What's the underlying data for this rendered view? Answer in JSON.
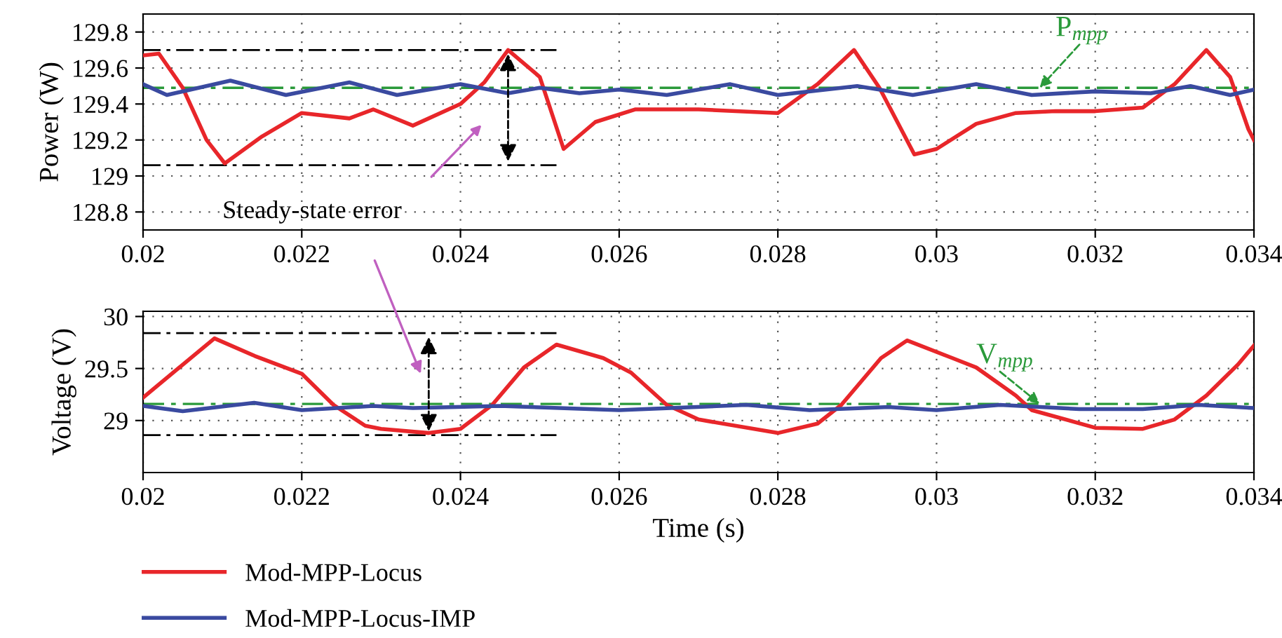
{
  "chart_data": [
    {
      "type": "line",
      "ylabel": "Power (W)",
      "xlim": [
        0.02,
        0.034
      ],
      "xticks": [
        0.02,
        0.022,
        0.024,
        0.026,
        0.028,
        0.03,
        0.032,
        0.034
      ],
      "ylim": [
        128.7,
        129.9
      ],
      "yticks": [
        128.8,
        129,
        129.2,
        129.4,
        129.6,
        129.8
      ],
      "grid": true,
      "legend": false,
      "series": [
        {
          "color": "#e8262a",
          "x": [
            0.02,
            0.0202,
            0.0205,
            0.0208,
            0.02103,
            0.0215,
            0.022,
            0.0226,
            0.0229,
            0.0234,
            0.024,
            0.0243,
            0.0246,
            0.025,
            0.0253,
            0.0257,
            0.0262,
            0.027,
            0.028,
            0.0285,
            0.02896,
            0.02928,
            0.02972,
            0.03,
            0.0305,
            0.031,
            0.0315,
            0.032,
            0.0326,
            0.033,
            0.0334,
            0.0337,
            0.03393,
            0.034
          ],
          "values": [
            129.67,
            129.68,
            129.49,
            129.2,
            129.07,
            129.22,
            129.35,
            129.32,
            129.37,
            129.28,
            129.4,
            129.52,
            129.7,
            129.55,
            129.15,
            129.3,
            129.37,
            129.37,
            129.35,
            129.51,
            129.7,
            129.49,
            129.12,
            129.15,
            129.29,
            129.35,
            129.36,
            129.36,
            129.38,
            129.51,
            129.7,
            129.55,
            129.26,
            129.2
          ]
        },
        {
          "color": "#3a4aa0",
          "x": [
            0.02,
            0.0203,
            0.0211,
            0.0218,
            0.0226,
            0.0232,
            0.024,
            0.0246,
            0.025,
            0.0255,
            0.026,
            0.0266,
            0.0274,
            0.028,
            0.029,
            0.0297,
            0.0305,
            0.0312,
            0.032,
            0.0327,
            0.0332,
            0.0337,
            0.034
          ],
          "values": [
            129.51,
            129.45,
            129.53,
            129.45,
            129.52,
            129.45,
            129.51,
            129.46,
            129.49,
            129.46,
            129.48,
            129.45,
            129.51,
            129.45,
            129.5,
            129.45,
            129.51,
            129.45,
            129.47,
            129.46,
            129.5,
            129.45,
            129.48
          ]
        },
        {
          "color": "#000000",
          "line_style": "dashed",
          "x": [
            0.02,
            0.02521
          ],
          "values": [
            129.7,
            129.7
          ]
        },
        {
          "color": "#000000",
          "line_style": "dashed",
          "x": [
            0.02,
            0.02521
          ],
          "values": [
            129.06,
            129.06
          ]
        }
      ],
      "ref_lines": [
        {
          "axis": "y",
          "value": 129.49,
          "label": "P$_{mpp}$",
          "color": "#2a9a3a",
          "line_style": "dashed"
        }
      ],
      "annotations": [
        "Steady-state error"
      ]
    },
    {
      "type": "line",
      "xlabel": "Time (s)",
      "ylabel": "Voltage (V)",
      "xlim": [
        0.02,
        0.034
      ],
      "xticks": [
        0.02,
        0.022,
        0.024,
        0.026,
        0.028,
        0.03,
        0.032,
        0.034
      ],
      "ylim": [
        28.5,
        30.05
      ],
      "yticks": [
        29,
        29.5,
        30
      ],
      "grid": true,
      "legend": "bottom left",
      "series": [
        {
          "name": "Mod-MPP-Locus",
          "color": "#e8262a",
          "x": [
            0.02,
            0.0209,
            0.02141,
            0.022,
            0.0224,
            0.0228,
            0.023,
            0.0236,
            0.024,
            0.0244,
            0.0248,
            0.02521,
            0.0258,
            0.02615,
            0.0266,
            0.027,
            0.028,
            0.0285,
            0.0288,
            0.0293,
            0.02963,
            0.0302,
            0.0305,
            0.031,
            0.0312,
            0.032,
            0.0326,
            0.033,
            0.0334,
            0.0338,
            0.034
          ],
          "values": [
            29.22,
            29.79,
            29.62,
            29.45,
            29.15,
            28.95,
            28.92,
            28.88,
            28.92,
            29.15,
            29.51,
            29.73,
            29.6,
            29.46,
            29.15,
            29.01,
            28.88,
            28.97,
            29.15,
            29.6,
            29.77,
            29.6,
            29.51,
            29.24,
            29.1,
            28.93,
            28.92,
            29.01,
            29.24,
            29.54,
            29.72
          ]
        },
        {
          "name": "Mod-MPP-Locus-IMP",
          "color": "#3a4aa0",
          "x": [
            0.02,
            0.0205,
            0.0214,
            0.022,
            0.0229,
            0.0234,
            0.0245,
            0.026,
            0.0276,
            0.0284,
            0.0294,
            0.03,
            0.0308,
            0.0318,
            0.0326,
            0.0333,
            0.034
          ],
          "values": [
            29.14,
            29.09,
            29.17,
            29.1,
            29.14,
            29.12,
            29.14,
            29.1,
            29.15,
            29.1,
            29.13,
            29.1,
            29.15,
            29.11,
            29.11,
            29.15,
            29.12
          ]
        },
        {
          "color": "#000000",
          "line_style": "dashed",
          "x": [
            0.02,
            0.02521
          ],
          "values": [
            29.84,
            29.84
          ]
        },
        {
          "color": "#000000",
          "line_style": "dashed",
          "x": [
            0.02,
            0.02521
          ],
          "values": [
            28.86,
            28.86
          ]
        }
      ],
      "ref_lines": [
        {
          "axis": "y",
          "value": 29.16,
          "label": "V$_{mpp}$",
          "color": "#2a9a3a",
          "line_style": "dashed"
        }
      ]
    }
  ]
}
